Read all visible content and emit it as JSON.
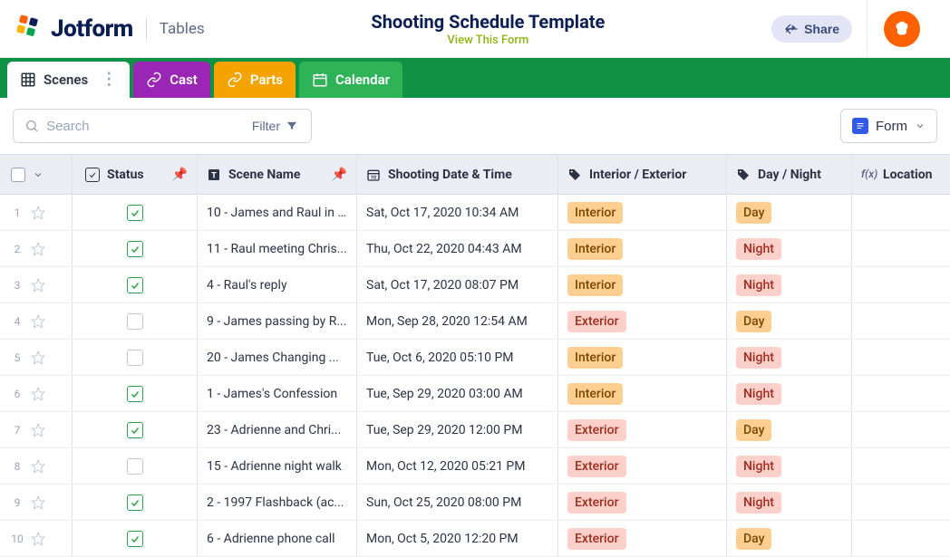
{
  "header": {
    "brand": "Jotform",
    "product": "Tables",
    "title": "Shooting Schedule Template",
    "view_link": "View This Form",
    "share_label": "Share"
  },
  "tabs": {
    "scenes": "Scenes",
    "cast": "Cast",
    "parts": "Parts",
    "calendar": "Calendar"
  },
  "toolbar": {
    "search_placeholder": "Search",
    "filter_label": "Filter",
    "form_btn": "Form"
  },
  "columns": {
    "status": "Status",
    "scene": "Scene Name",
    "date": "Shooting Date & Time",
    "intext": "Interior / Exterior",
    "daynight": "Day / Night",
    "location": "Location"
  },
  "chips": {
    "interior": "Interior",
    "exterior": "Exterior",
    "day": "Day",
    "night": "Night"
  },
  "rows": [
    {
      "num": "1",
      "checked": true,
      "scene": "10 - James and Raul in ...",
      "date": "Sat, Oct 17, 2020 10:34 AM",
      "intext": "interior",
      "daynight": "day"
    },
    {
      "num": "2",
      "checked": true,
      "scene": "11 - Raul meeting Chris...",
      "date": "Thu, Oct 22, 2020 04:43 AM",
      "intext": "interior",
      "daynight": "night"
    },
    {
      "num": "3",
      "checked": true,
      "scene": "4 - Raul's reply",
      "date": "Sat, Oct 17, 2020 08:07 PM",
      "intext": "interior",
      "daynight": "night"
    },
    {
      "num": "4",
      "checked": false,
      "scene": "9 - James passing by R...",
      "date": "Mon, Sep 28, 2020 12:54 AM",
      "intext": "exterior",
      "daynight": "day"
    },
    {
      "num": "5",
      "checked": false,
      "scene": "20 - James Changing ...",
      "date": "Tue, Oct 6, 2020 05:10 PM",
      "intext": "interior",
      "daynight": "night"
    },
    {
      "num": "6",
      "checked": true,
      "scene": "1 - James's Confession",
      "date": "Tue, Sep 29, 2020 03:00 AM",
      "intext": "interior",
      "daynight": "night"
    },
    {
      "num": "7",
      "checked": true,
      "scene": "23 - Adrienne and Chri...",
      "date": "Tue, Sep 29, 2020 12:00 PM",
      "intext": "exterior",
      "daynight": "day"
    },
    {
      "num": "8",
      "checked": false,
      "scene": "15 - Adrienne night walk",
      "date": "Mon, Oct 12, 2020 05:21 PM",
      "intext": "exterior",
      "daynight": "night"
    },
    {
      "num": "9",
      "checked": true,
      "scene": "2 - 1997 Flashback (ac...",
      "date": "Sun, Oct 25, 2020 08:00 PM",
      "intext": "exterior",
      "daynight": "night"
    },
    {
      "num": "10",
      "checked": true,
      "scene": "6 - Adrienne phone call",
      "date": "Mon, Oct 5, 2020 12:20 PM",
      "intext": "exterior",
      "daynight": "day"
    }
  ],
  "colors": {
    "green_bar": "#0f9246",
    "purple": "#9b26b6",
    "orange": "#f5a300",
    "light_green": "#2fb357",
    "avatar": "#ff6100",
    "link": "#8fb516"
  }
}
